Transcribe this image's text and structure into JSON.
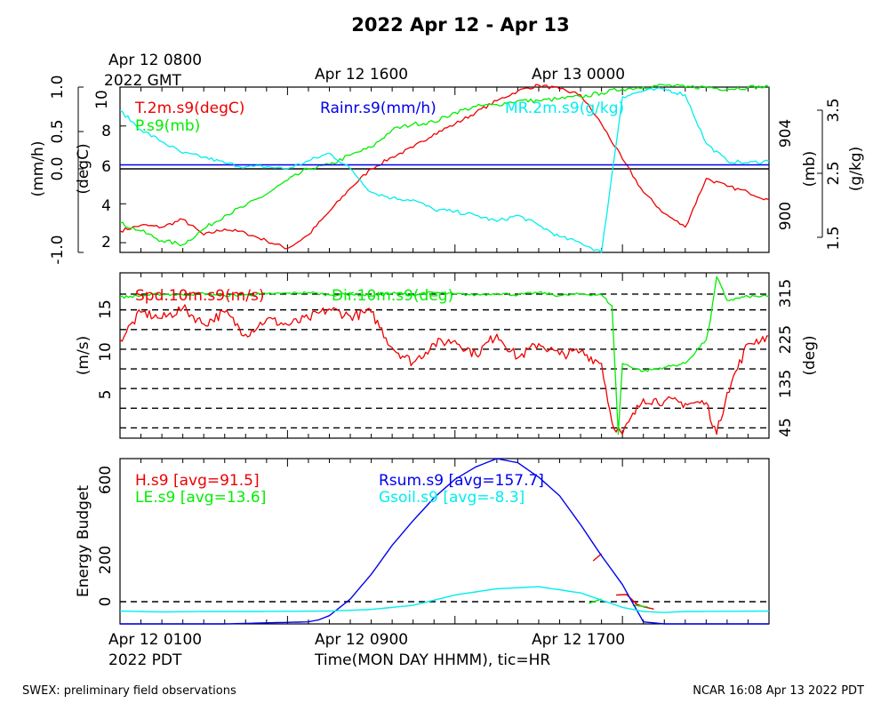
{
  "title": "2022 Apr 12 - Apr 13",
  "top_time_labels": [
    "Apr 12 0800",
    "2022 GMT",
    "Apr 12 1600",
    "Apr 13 0000"
  ],
  "bottom_time_labels": [
    "Apr 12 0100",
    "2022 PDT",
    "Apr 12 0900",
    "Apr 12 1700"
  ],
  "xlabel": "Time(MON DAY HHMM), tic=HR",
  "footer_left": "SWEX: preliminary field observations",
  "footer_right": "NCAR 16:08 Apr 13 2022 PDT",
  "colors": {
    "red": "#ee0000",
    "green": "#00ee00",
    "blue": "#0000ee",
    "cyan": "#00eeee",
    "black": "#000000"
  },
  "chart_data": [
    {
      "type": "line",
      "x_unit": "hours since Apr 12 0100 PDT",
      "xlim": [
        0,
        31
      ],
      "axes": [
        {
          "side": "left-outer",
          "label": "(mm/h)",
          "ticks": [
            "-1.0",
            "0.0",
            "0.5",
            "1.0"
          ]
        },
        {
          "side": "left-inner",
          "label": "(degC)",
          "range": [
            1.5,
            10
          ],
          "ticks": [
            "2",
            "4",
            "6",
            "8",
            "10"
          ]
        },
        {
          "side": "right-inner",
          "label": "(mb)",
          "ticks": [
            "900",
            "904"
          ]
        },
        {
          "side": "right-outer",
          "label": "(g/kg)",
          "ticks": [
            "1.5",
            "2.5",
            "3.5"
          ]
        }
      ],
      "legend": [
        "T.2m.s9(degC)",
        "P.s9(mb)",
        "Rainr.s9(mm/h)",
        "MR.2m.s9(g/kg)"
      ],
      "series": [
        {
          "name": "T.2m.s9(degC)",
          "color": "red",
          "x": [
            0,
            1,
            2,
            3,
            4,
            5,
            6,
            7,
            8,
            9,
            10,
            11,
            12,
            13,
            14,
            15,
            16,
            17,
            18,
            19,
            20,
            21,
            22,
            23,
            24,
            25,
            26,
            27,
            28,
            29,
            30,
            31
          ],
          "values": [
            2.6,
            2.9,
            2.8,
            3.2,
            2.4,
            2.7,
            2.5,
            2.1,
            1.7,
            2.4,
            3.6,
            4.8,
            5.8,
            6.4,
            6.9,
            7.6,
            8.1,
            8.7,
            9.3,
            9.8,
            10.1,
            9.9,
            9.6,
            8.1,
            6.3,
            4.6,
            3.5,
            2.8,
            5.3,
            4.9,
            4.6,
            4.2
          ]
        },
        {
          "name": "P.s9(mb)",
          "color": "green",
          "x": [
            0,
            1,
            2,
            3,
            4,
            5,
            6,
            7,
            8,
            9,
            10,
            11,
            12,
            13,
            14,
            15,
            16,
            17,
            18,
            19,
            20,
            21,
            22,
            23,
            24,
            25,
            26,
            27,
            28,
            29,
            30,
            31
          ],
          "values": [
            3.0,
            2.6,
            2.1,
            1.9,
            2.7,
            3.4,
            3.9,
            4.5,
            5.2,
            5.8,
            6.0,
            6.5,
            6.9,
            7.8,
            8.1,
            8.2,
            8.7,
            9.0,
            9.1,
            9.3,
            9.3,
            9.4,
            9.5,
            9.7,
            9.9,
            10.0,
            10.1,
            10.0,
            10.0,
            9.9,
            10.0,
            10.0
          ]
        },
        {
          "name": "Rainr.s9(mm/h)",
          "color": "blue",
          "x": [
            0,
            31
          ],
          "values": [
            6.0,
            6.0
          ]
        },
        {
          "name": "MR.2m.s9(g/kg)",
          "color": "cyan",
          "x": [
            0,
            1,
            2,
            3,
            4,
            5,
            6,
            7,
            8,
            9,
            10,
            11,
            12,
            13,
            14,
            15,
            16,
            17,
            18,
            19,
            20,
            21,
            22,
            23,
            24,
            25,
            26,
            27,
            28,
            29,
            30,
            31
          ],
          "values": [
            8.8,
            7.8,
            7.2,
            6.6,
            6.4,
            6.1,
            5.9,
            5.9,
            5.8,
            6.2,
            6.6,
            5.8,
            4.6,
            4.3,
            4.2,
            3.7,
            3.6,
            3.4,
            3.1,
            3.4,
            2.9,
            2.3,
            2.0,
            1.5,
            9.5,
            9.8,
            9.9,
            9.6,
            7.1,
            6.2,
            6.1,
            6.2
          ]
        }
      ]
    },
    {
      "type": "line",
      "x_unit": "hours since Apr 12 0100 PDT",
      "xlim": [
        0,
        31
      ],
      "axes": [
        {
          "side": "left",
          "label": "(m/s)",
          "range": [
            0,
            21
          ],
          "ticks": [
            "5",
            "10",
            "15"
          ]
        },
        {
          "side": "right",
          "label": "(deg)",
          "ticks": [
            "45",
            "135",
            "225",
            "315"
          ]
        }
      ],
      "legend": [
        "Spd.10m.s9(m/s)",
        "Dir.10m.s9(deg)"
      ],
      "series": [
        {
          "name": "Spd.10m.s9(m/s)",
          "color": "red",
          "x": [
            0,
            1,
            2,
            3,
            4,
            5,
            6,
            7,
            8,
            9,
            10,
            11,
            12,
            13,
            14,
            15,
            16,
            17,
            18,
            19,
            20,
            21,
            22,
            23,
            23.5,
            24,
            25,
            26,
            27,
            28,
            28.5,
            29,
            30,
            31
          ],
          "values": [
            12.5,
            16.0,
            15.2,
            16.5,
            14.5,
            16.0,
            13.2,
            15.1,
            14.4,
            15.2,
            16.4,
            15.5,
            16.0,
            11.5,
            9.6,
            12.0,
            12.4,
            10.6,
            13.2,
            10.2,
            12.0,
            10.6,
            11.0,
            9.5,
            2.0,
            0.5,
            5.0,
            4.7,
            4.4,
            4.5,
            0.5,
            5.8,
            12.0,
            13.0
          ]
        },
        {
          "name": "Dir.10m.s9(deg)",
          "color": "green",
          "x": [
            0,
            1,
            2,
            3,
            4,
            5,
            6,
            7,
            8,
            9,
            10,
            11,
            12,
            13,
            14,
            15,
            16,
            17,
            18,
            19,
            20,
            21,
            22,
            23,
            23.5,
            23.8,
            24,
            25,
            26,
            27,
            28,
            28.2,
            28.5,
            29,
            30,
            31
          ],
          "values": [
            17.9,
            18.1,
            18.3,
            18.2,
            18.4,
            18.1,
            18.2,
            18.3,
            18.4,
            18.5,
            18.2,
            18.3,
            18.1,
            18.4,
            18.2,
            18.5,
            18.3,
            18.2,
            18.4,
            18.2,
            18.5,
            18.1,
            18.3,
            18.2,
            16.8,
            0.5,
            9.5,
            8.5,
            9.0,
            9.5,
            12.5,
            15.0,
            20.5,
            17.5,
            18.0,
            18.0
          ]
        }
      ]
    },
    {
      "type": "line",
      "x_unit": "hours since Apr 12 0100 PDT",
      "xlim": [
        0,
        31
      ],
      "ylim": [
        -80,
        720
      ],
      "ylabel": "Energy Budget",
      "yticks": [
        "0",
        "200",
        "600"
      ],
      "legend": [
        "H.s9 [avg=91.5]",
        "LE.s9 [avg=13.6]",
        "Rsum.s9 [avg=157.7]",
        "Gsoil.s9 [avg=-8.3]"
      ],
      "series": [
        {
          "name": "H.s9 [avg=91.5]",
          "color": "red",
          "segments": [
            {
              "x": [
                22.6,
                23.0
              ],
              "values": [
                225,
                260
              ]
            },
            {
              "x": [
                23.7,
                24.2,
                24.8
              ],
              "values": [
                60,
                62,
                5
              ]
            },
            {
              "x": [
                24.6,
                25.0,
                25.5
              ],
              "values": [
                18,
                3,
                -8
              ]
            }
          ]
        },
        {
          "name": "LE.s9 [avg=13.6]",
          "color": "green",
          "segments": [
            {
              "x": [
                22.4,
                23.0
              ],
              "values": [
                20,
                40
              ]
            },
            {
              "x": [
                24.5,
                25.2
              ],
              "values": [
                10,
                3
              ]
            }
          ]
        },
        {
          "name": "Rsum.s9 [avg=157.7]",
          "color": "blue",
          "x": [
            0,
            5,
            9,
            9.5,
            10,
            11,
            12,
            13,
            14,
            15,
            16,
            17,
            18,
            19,
            20,
            21,
            22,
            23,
            24,
            25,
            26,
            31
          ],
          "values": [
            -80,
            -80,
            -70,
            -60,
            -40,
            40,
            160,
            300,
            420,
            530,
            620,
            680,
            720,
            700,
            630,
            540,
            400,
            250,
            110,
            -70,
            -80,
            -80
          ]
        },
        {
          "name": "Gsoil.s9 [avg=-8.3]",
          "color": "cyan",
          "x": [
            0,
            2,
            4,
            6,
            8,
            10,
            12,
            14,
            16,
            18,
            20,
            22,
            24,
            25,
            26,
            27,
            31
          ],
          "values": [
            -18,
            -22,
            -20,
            -20,
            -19,
            -18,
            -10,
            10,
            60,
            90,
            100,
            70,
            0,
            -20,
            -25,
            -20,
            -18
          ]
        }
      ]
    }
  ]
}
